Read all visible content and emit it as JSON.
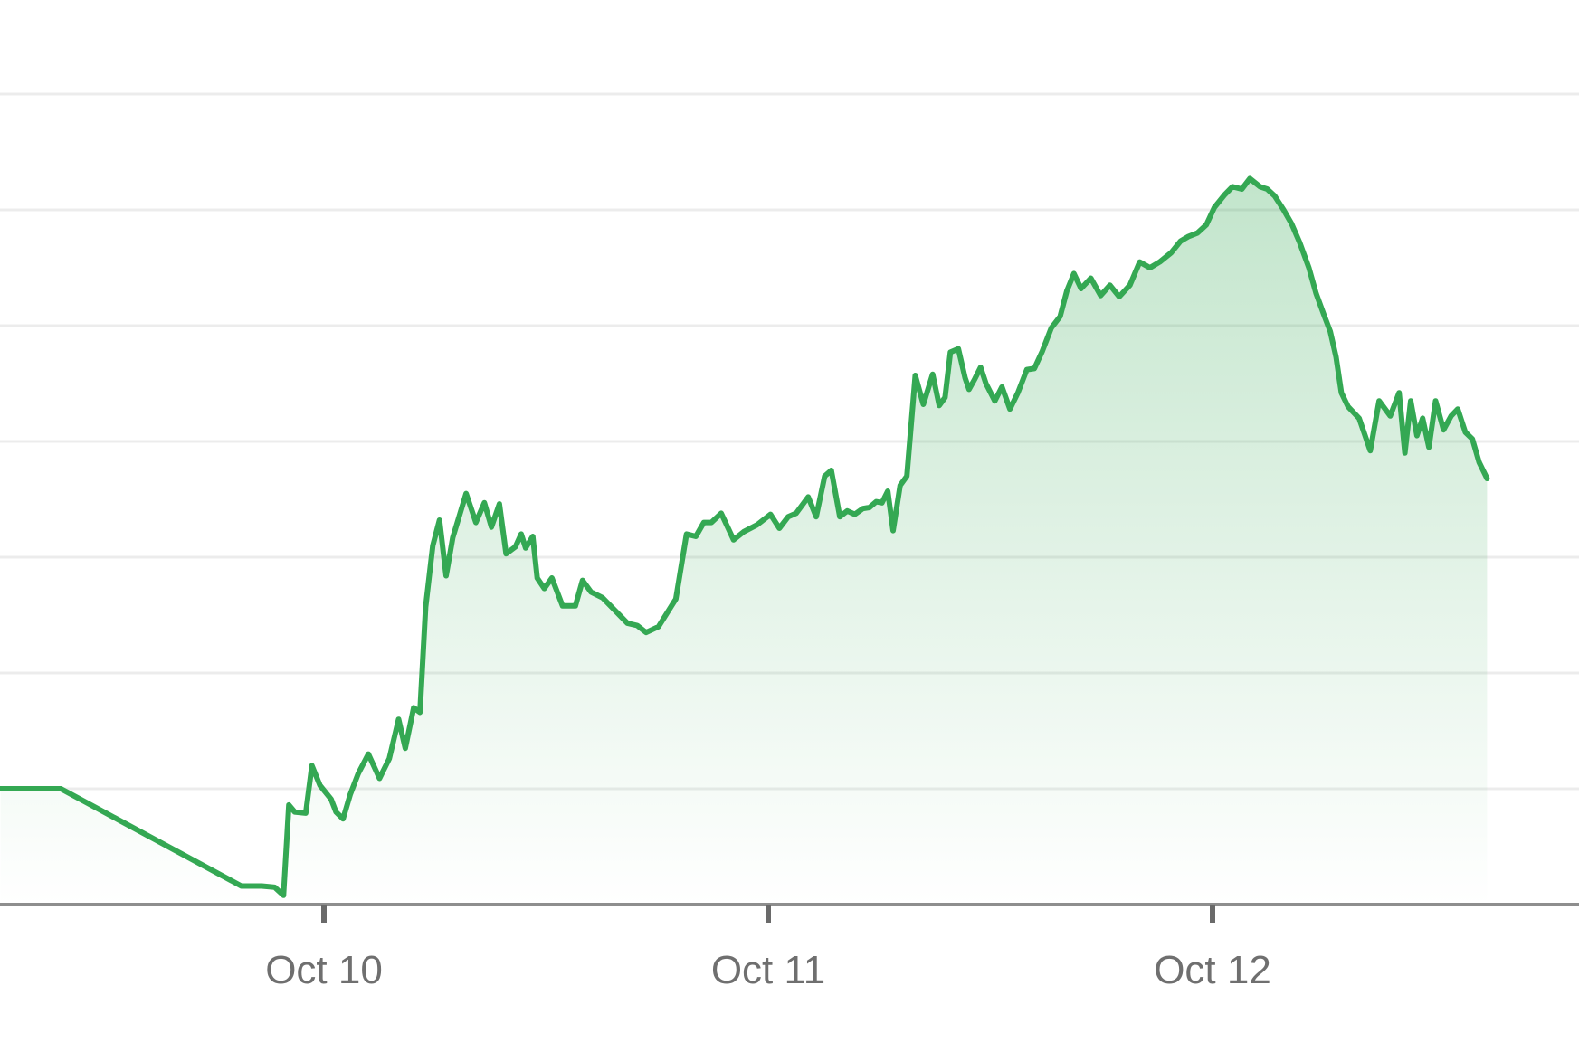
{
  "chart_data": {
    "type": "area",
    "title": "",
    "xlabel": "",
    "ylabel": "",
    "x_ticks": [
      "Oct 10",
      "Oct 11",
      "Oct 12"
    ],
    "y_range": [
      0,
      7
    ],
    "y_gridlines": [
      1,
      2,
      3,
      4,
      5,
      6,
      7
    ],
    "grid": true,
    "legend": "none",
    "colors": {
      "line": "#34a853",
      "fill": "#34a853",
      "grid": "#ececec",
      "axis": "#8e8e8e",
      "tick_label": "#6f6f6f"
    },
    "series": [
      {
        "x": [
          -0.728,
          -0.592,
          -0.186,
          -0.14,
          -0.111,
          -0.091,
          -0.079,
          -0.066,
          -0.041,
          -0.027,
          -0.009,
          0.016,
          0.027,
          0.043,
          0.059,
          0.077,
          0.1,
          0.125,
          0.147,
          0.168,
          0.183,
          0.202,
          0.216,
          0.229,
          0.245,
          0.26,
          0.275,
          0.29,
          0.32,
          0.342,
          0.361,
          0.377,
          0.395,
          0.41,
          0.431,
          0.444,
          0.454,
          0.47,
          0.48,
          0.496,
          0.513,
          0.537,
          0.566,
          0.582,
          0.601,
          0.627,
          0.66,
          0.683,
          0.705,
          0.725,
          0.753,
          0.792,
          0.816,
          0.837,
          0.855,
          0.872,
          0.894,
          0.922,
          0.945,
          0.975,
          1.005,
          1.025,
          1.045,
          1.063,
          1.09,
          1.108,
          1.127,
          1.142,
          1.161,
          1.178,
          1.195,
          1.213,
          1.228,
          1.243,
          1.256,
          1.269,
          1.281,
          1.297,
          1.312,
          1.331,
          1.349,
          1.37,
          1.385,
          1.398,
          1.41,
          1.428,
          1.443,
          1.452,
          1.465,
          1.478,
          1.49,
          1.51,
          1.526,
          1.544,
          1.562,
          1.582,
          1.599,
          1.617,
          1.637,
          1.657,
          1.672,
          1.688,
          1.704,
          1.726,
          1.748,
          1.769,
          1.79,
          1.814,
          1.836,
          1.859,
          1.881,
          1.907,
          1.928,
          1.946,
          1.966,
          1.986,
          2.004,
          2.027,
          2.045,
          2.066,
          2.084,
          2.107,
          2.123,
          2.14,
          2.16,
          2.178,
          2.196,
          2.217,
          2.233,
          2.25,
          2.265,
          2.278,
          2.29,
          2.305,
          2.33,
          2.355,
          2.375,
          2.4,
          2.42,
          2.433,
          2.446,
          2.46,
          2.473,
          2.487,
          2.502,
          2.52,
          2.537,
          2.552,
          2.569,
          2.585,
          2.6,
          2.618
        ],
        "values": [
          1.0,
          1.0,
          0.16,
          0.16,
          0.15,
          0.08,
          0.86,
          0.8,
          0.79,
          1.2,
          1.03,
          0.91,
          0.8,
          0.74,
          0.95,
          1.13,
          1.3,
          1.09,
          1.26,
          1.6,
          1.35,
          1.7,
          1.66,
          2.57,
          3.1,
          3.32,
          2.84,
          3.17,
          3.55,
          3.3,
          3.47,
          3.26,
          3.46,
          3.03,
          3.09,
          3.2,
          3.08,
          3.18,
          2.82,
          2.73,
          2.82,
          2.58,
          2.58,
          2.8,
          2.7,
          2.65,
          2.52,
          2.43,
          2.41,
          2.35,
          2.4,
          2.64,
          3.2,
          3.18,
          3.3,
          3.3,
          3.38,
          3.15,
          3.22,
          3.28,
          3.37,
          3.25,
          3.35,
          3.38,
          3.52,
          3.35,
          3.7,
          3.75,
          3.35,
          3.4,
          3.37,
          3.42,
          3.43,
          3.48,
          3.47,
          3.57,
          3.23,
          3.62,
          3.7,
          4.57,
          4.32,
          4.58,
          4.31,
          4.38,
          4.77,
          4.8,
          4.55,
          4.45,
          4.54,
          4.64,
          4.5,
          4.35,
          4.47,
          4.28,
          4.42,
          4.62,
          4.63,
          4.78,
          4.98,
          5.08,
          5.3,
          5.45,
          5.32,
          5.41,
          5.26,
          5.35,
          5.25,
          5.35,
          5.55,
          5.5,
          5.55,
          5.63,
          5.73,
          5.77,
          5.8,
          5.87,
          6.02,
          6.13,
          6.2,
          6.18,
          6.27,
          6.2,
          6.18,
          6.12,
          6.0,
          5.88,
          5.72,
          5.5,
          5.28,
          5.1,
          4.95,
          4.73,
          4.42,
          4.3,
          4.2,
          3.92,
          4.35,
          4.22,
          4.42,
          3.9,
          4.35,
          4.05,
          4.2,
          3.95,
          4.35,
          4.1,
          4.22,
          4.28,
          4.08,
          4.02,
          3.82,
          3.68
        ]
      }
    ]
  }
}
